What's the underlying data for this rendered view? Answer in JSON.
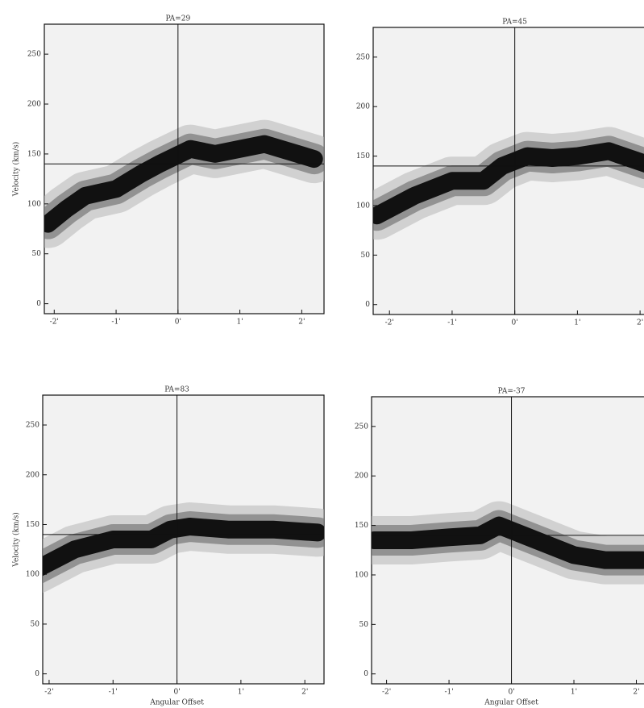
{
  "chart_data": [
    {
      "type": "line",
      "title": "PA=29",
      "y_label": "Velocity (km/s)",
      "x": [
        -2.1,
        -1.8,
        -1.5,
        -1.0,
        -0.6,
        -0.3,
        0.2,
        0.6,
        1.0,
        1.4,
        2.2
      ],
      "values": [
        80,
        95,
        108,
        115,
        130,
        140,
        155,
        150,
        155,
        160,
        145
      ],
      "color": "#111111",
      "xlim": [
        -2.16,
        2.36
      ],
      "ylim": [
        -10,
        280
      ],
      "xticks": [
        {
          "value": -2,
          "label": "-2'"
        },
        {
          "value": -1,
          "label": "-1'"
        },
        {
          "value": 0,
          "label": "0'"
        },
        {
          "value": 1,
          "label": "1'"
        },
        {
          "value": 2,
          "label": "2'"
        }
      ],
      "yticks": [
        0,
        50,
        100,
        150,
        200,
        250
      ],
      "vline": 0,
      "hline": 140
    },
    {
      "type": "line",
      "title": "PA=45",
      "x": [
        -2.2,
        -1.6,
        -1.0,
        -0.5,
        -0.2,
        0.2,
        0.6,
        1.0,
        1.5,
        2.1
      ],
      "values": [
        90,
        110,
        125,
        125,
        140,
        150,
        148,
        150,
        155,
        142
      ],
      "color": "#111111",
      "xlim": [
        -2.26,
        2.14
      ],
      "ylim": [
        -10,
        280
      ],
      "xticks": [
        {
          "value": -2,
          "label": "-2'"
        },
        {
          "value": -1,
          "label": "-1'"
        },
        {
          "value": 0,
          "label": "0'"
        },
        {
          "value": 1,
          "label": "1'"
        },
        {
          "value": 2,
          "label": "2'"
        }
      ],
      "yticks": [
        0,
        50,
        100,
        150,
        200,
        250
      ],
      "vline": 0,
      "hline": 140
    },
    {
      "type": "line",
      "title": "PA=83",
      "y_label": "Velocity (km/s)",
      "x_label": "Angular Offset",
      "x": [
        -2.2,
        -1.6,
        -1.0,
        -0.4,
        -0.1,
        0.2,
        0.8,
        1.5,
        2.2
      ],
      "values": [
        105,
        125,
        135,
        135,
        145,
        148,
        145,
        145,
        142
      ],
      "color": "#111111",
      "xlim": [
        -2.1,
        2.3
      ],
      "ylim": [
        -10,
        280
      ],
      "xticks": [
        {
          "value": -2,
          "label": "-2'"
        },
        {
          "value": -1,
          "label": "-1'"
        },
        {
          "value": 0,
          "label": "0'"
        },
        {
          "value": 1,
          "label": "1'"
        },
        {
          "value": 2,
          "label": "2'"
        }
      ],
      "yticks": [
        0,
        50,
        100,
        150,
        200,
        250
      ],
      "vline": 0,
      "hline": 140
    },
    {
      "type": "line",
      "title": "PA=-37",
      "x_label": "Angular Offset",
      "x": [
        -2.2,
        -1.6,
        -1.0,
        -0.5,
        -0.2,
        0.2,
        0.6,
        1.0,
        1.5,
        2.1
      ],
      "values": [
        135,
        135,
        138,
        140,
        150,
        140,
        130,
        120,
        115,
        115
      ],
      "color": "#111111",
      "xlim": [
        -2.24,
        2.2
      ],
      "ylim": [
        -10,
        280
      ],
      "xticks": [
        {
          "value": -2,
          "label": "-2'"
        },
        {
          "value": -1,
          "label": "-1'"
        },
        {
          "value": 0,
          "label": "0'"
        },
        {
          "value": 1,
          "label": "1'"
        },
        {
          "value": 2,
          "label": "2'"
        }
      ],
      "yticks": [
        0,
        50,
        100,
        150,
        200,
        250
      ],
      "vline": 0,
      "hline": 140
    }
  ]
}
